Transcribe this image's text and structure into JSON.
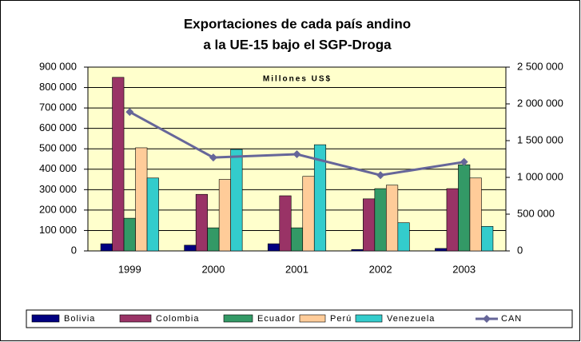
{
  "chart_data": {
    "type": "bar",
    "title": [
      "Exportaciones de cada país andino",
      "a la UE-15 bajo el SGP-Droga"
    ],
    "annotation": "Millones US$",
    "categories": [
      "1999",
      "2000",
      "2001",
      "2002",
      "2003"
    ],
    "series": [
      {
        "name": "Bolivia",
        "color": "#000080",
        "values": [
          35000,
          28000,
          35000,
          7000,
          12000
        ]
      },
      {
        "name": "Colombia",
        "color": "#993366",
        "values": [
          850000,
          277000,
          270000,
          255000,
          305000
        ]
      },
      {
        "name": "Ecuador",
        "color": "#339966",
        "values": [
          160000,
          113000,
          113000,
          305000,
          422000
        ]
      },
      {
        "name": "Perú",
        "color": "#ffcc99",
        "values": [
          505000,
          350000,
          365000,
          322000,
          357000
        ]
      },
      {
        "name": "Venezuela",
        "color": "#33cccc",
        "values": [
          357000,
          497000,
          520000,
          138000,
          120000
        ]
      },
      {
        "name": "CAN",
        "type": "line",
        "axis": "y2",
        "color": "#666699",
        "values": [
          1890000,
          1270000,
          1315000,
          1030000,
          1210000
        ]
      }
    ],
    "ylim": [
      0,
      900000
    ],
    "yticks": [
      0,
      {
        "value": 100000,
        "label": "100 000"
      },
      {
        "value": 200000,
        "label": "200 000"
      },
      {
        "value": 300000,
        "label": "300 000"
      },
      {
        "value": 400000,
        "label": "400 000"
      },
      {
        "value": 500000,
        "label": "500 000"
      },
      {
        "value": 600000,
        "label": "600 000"
      },
      {
        "value": 700000,
        "label": "700 000"
      },
      {
        "value": 800000,
        "label": "800 000"
      },
      {
        "value": 900000,
        "label": "900 000"
      }
    ],
    "y2lim": [
      0,
      2500000
    ],
    "y2ticks": [
      0,
      {
        "value": 500000,
        "label": "500 000"
      },
      {
        "value": 1000000,
        "label": "1 000 000"
      },
      {
        "value": 1500000,
        "label": "1 500 000"
      },
      {
        "value": 2000000,
        "label": "2 000 000"
      },
      {
        "value": 2500000,
        "label": "2 500 000"
      }
    ],
    "grid": true,
    "legend": "bottom"
  }
}
